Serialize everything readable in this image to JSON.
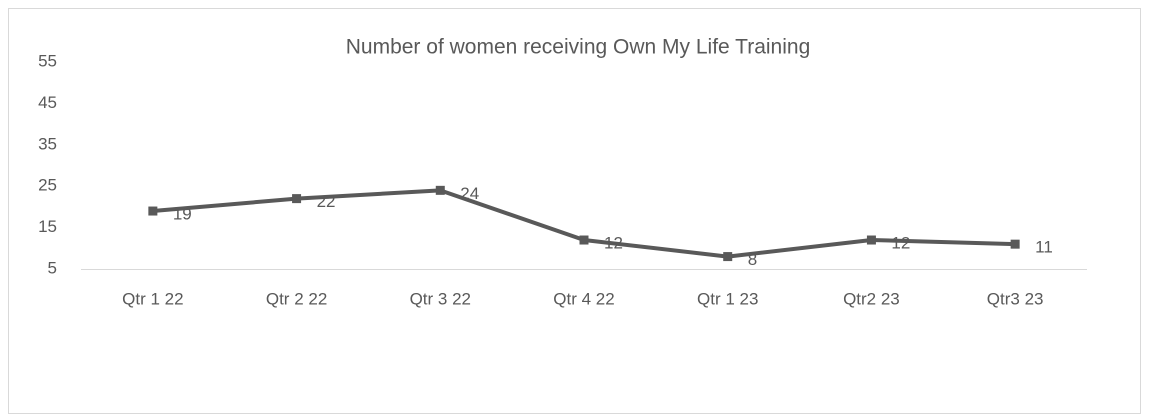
{
  "chart_data": {
    "type": "line",
    "title": "Number of women receiving Own My Life Training",
    "categories": [
      "Qtr 1 22",
      "Qtr 2 22",
      "Qtr 3 22",
      "Qtr 4 22",
      "Qtr 1 23",
      "Qtr2 23",
      "Qtr3 23"
    ],
    "values": [
      19,
      22,
      24,
      12,
      8,
      12,
      11
    ],
    "color": "#595959",
    "ylim": [
      5,
      55
    ],
    "yticks": [
      5,
      15,
      25,
      35,
      45,
      55
    ],
    "grid": false
  }
}
